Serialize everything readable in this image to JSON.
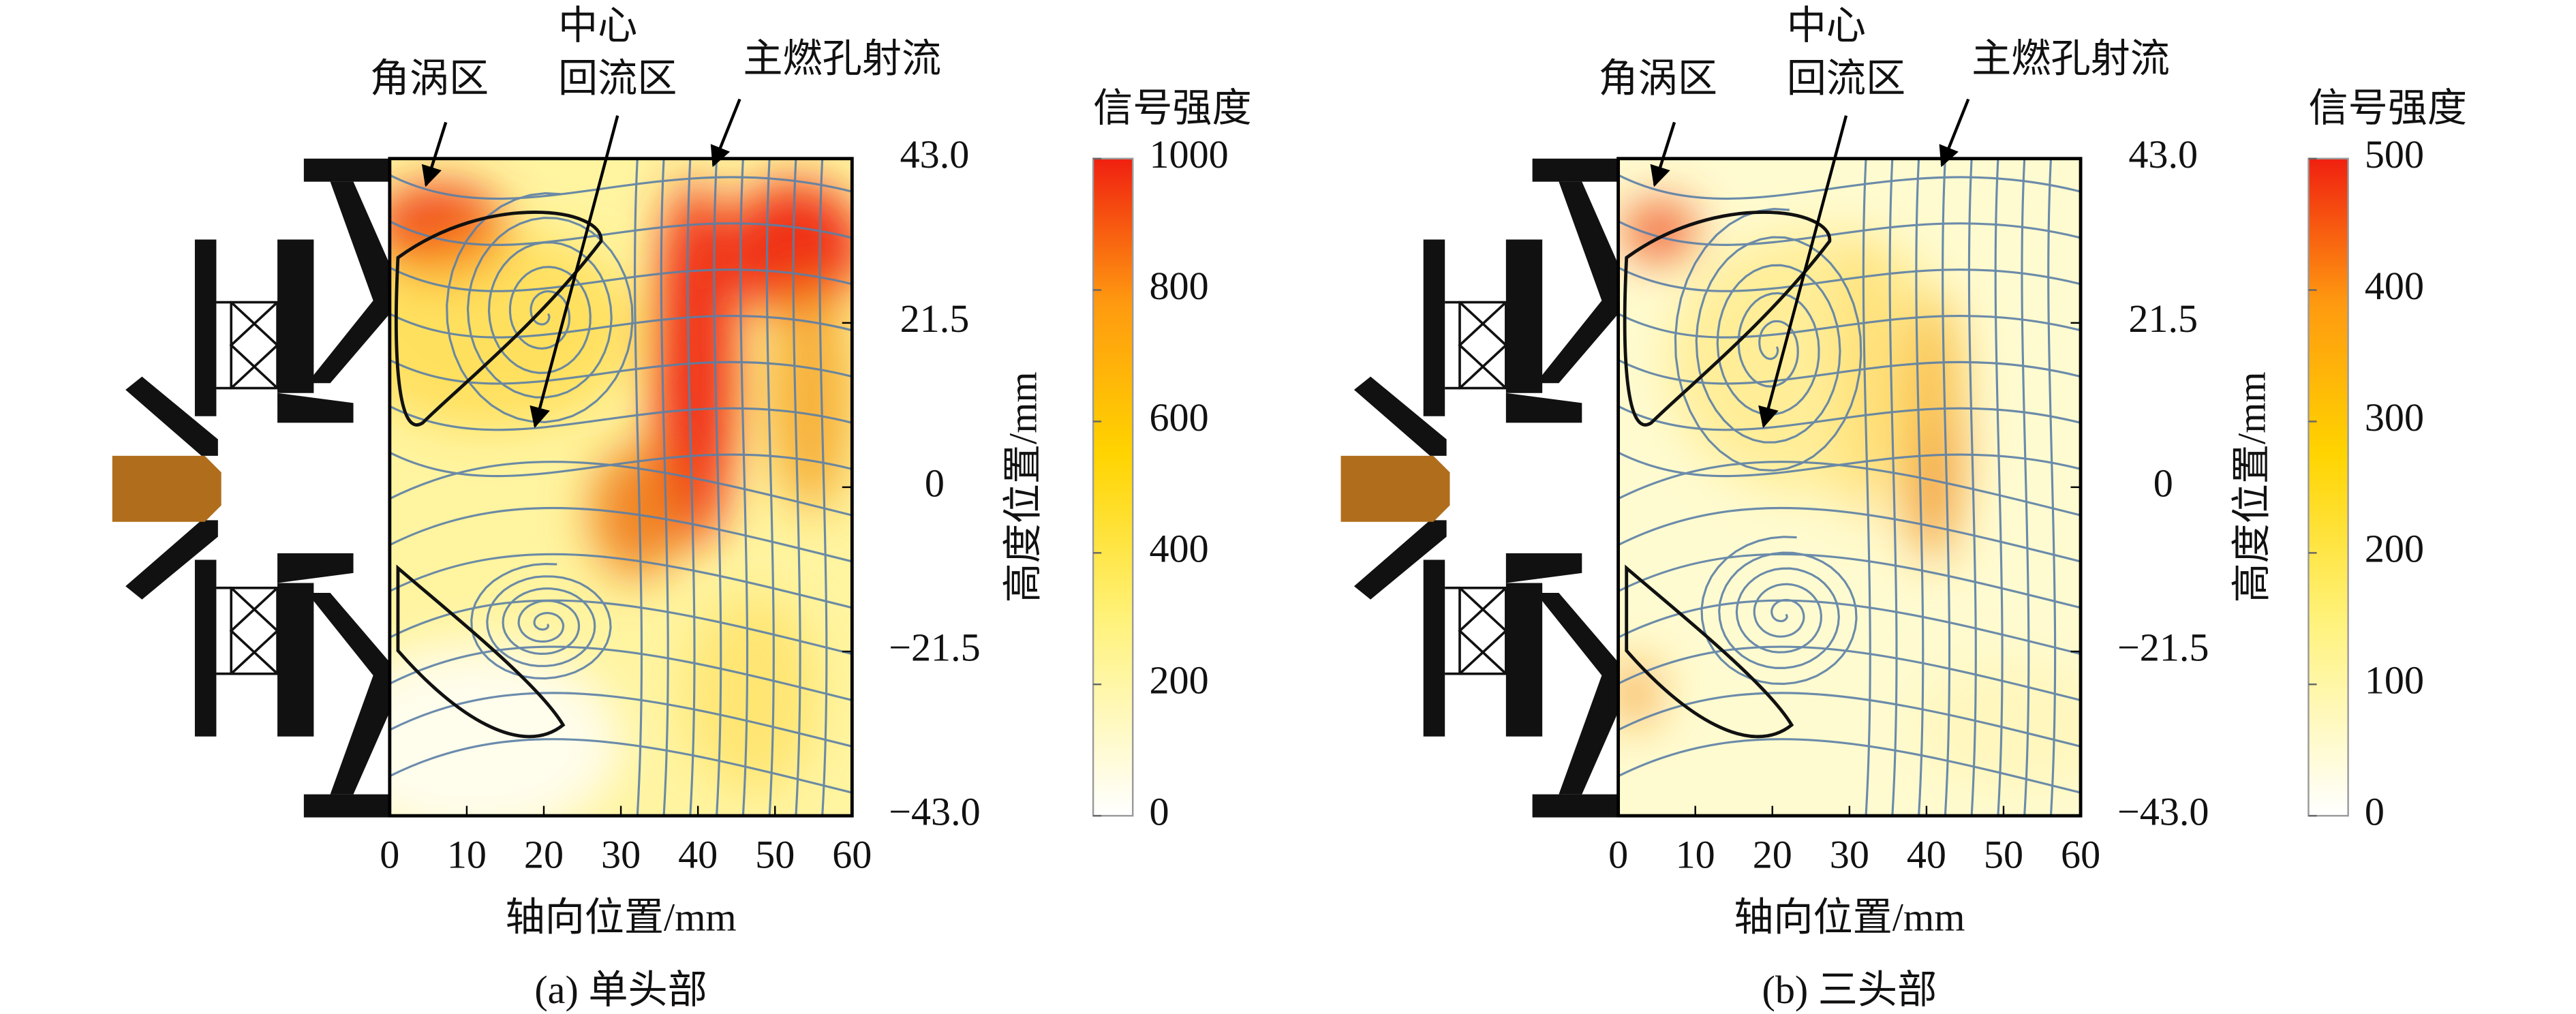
{
  "chart_data": [
    {
      "type": "heatmap",
      "caption": "(a) 单头部",
      "xlabel": "轴向位置/mm",
      "ylabel": "高度位置/mm",
      "xlim": [
        0,
        60
      ],
      "xticks": [
        0,
        10,
        20,
        30,
        40,
        50,
        60
      ],
      "ylim": [
        -43,
        43
      ],
      "yticks": [
        {
          "value": -43,
          "label": "−43.0"
        },
        {
          "value": -21.5,
          "label": "−21.5"
        },
        0,
        21.5,
        {
          "value": 43,
          "label": "43.0"
        }
      ],
      "colorbar": {
        "title": "信号强度",
        "lim": [
          0,
          1000
        ],
        "ticks": [
          0,
          200,
          400,
          600,
          800,
          1000
        ]
      },
      "annotations": [
        "角涡区",
        "中心",
        "回流区",
        "主燃孔射流"
      ]
    },
    {
      "type": "heatmap",
      "caption": "(b) 三头部",
      "xlabel": "轴向位置/mm",
      "ylabel": "高度位置/mm",
      "xlim": [
        0,
        60
      ],
      "xticks": [
        0,
        10,
        20,
        30,
        40,
        50,
        60
      ],
      "ylim": [
        -43,
        43
      ],
      "yticks": [
        {
          "value": -43,
          "label": "−43.0"
        },
        {
          "value": -21.5,
          "label": "−21.5"
        },
        0,
        21.5,
        {
          "value": 43,
          "label": "43.0"
        }
      ],
      "colorbar": {
        "title": "信号强度",
        "lim": [
          0,
          500
        ],
        "ticks": [
          0,
          100,
          200,
          300,
          400,
          500
        ]
      },
      "annotations": [
        "角涡区",
        "中心",
        "回流区",
        "主燃孔射流"
      ]
    }
  ]
}
